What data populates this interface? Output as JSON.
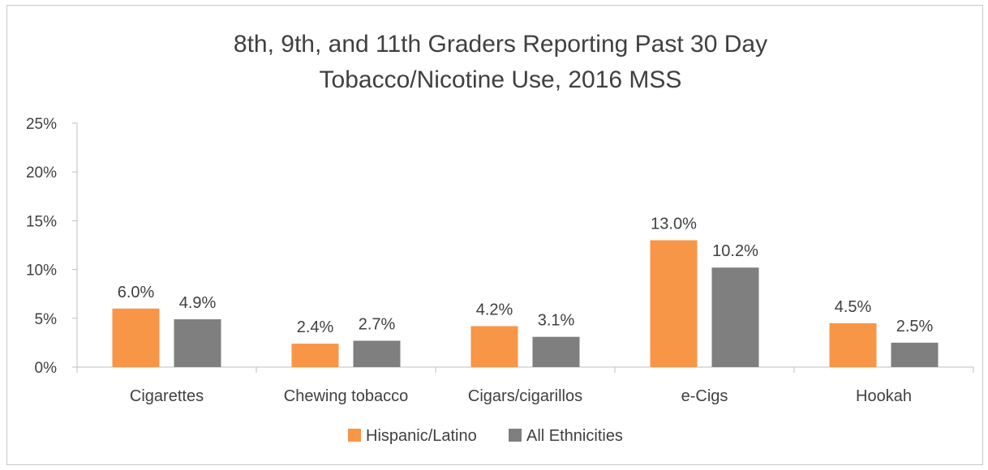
{
  "chart_data": {
    "type": "bar",
    "title_lines": [
      "8th, 9th, and 11th Graders Reporting Past 30 Day",
      "Tobacco/Nicotine Use, 2016 MSS"
    ],
    "categories": [
      "Cigarettes",
      "Chewing tobacco",
      "Cigars/cigarillos",
      "e-Cigs",
      "Hookah"
    ],
    "series": [
      {
        "name": "Hispanic/Latino",
        "color": "#f79646",
        "values": [
          6.0,
          2.4,
          4.2,
          13.0,
          4.5
        ],
        "labels": [
          "6.0%",
          "2.4%",
          "4.2%",
          "13.0%",
          "4.5%"
        ]
      },
      {
        "name": "All Ethnicities",
        "color": "#7f7f7f",
        "values": [
          4.9,
          2.7,
          3.1,
          10.2,
          2.5
        ],
        "labels": [
          "4.9%",
          "2.7%",
          "3.1%",
          "10.2%",
          "2.5%"
        ]
      }
    ],
    "ylim": [
      0,
      25
    ],
    "yticks": [
      "0%",
      "5%",
      "10%",
      "15%",
      "20%",
      "25%"
    ],
    "legend_position": "bottom",
    "grid": false
  }
}
